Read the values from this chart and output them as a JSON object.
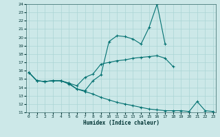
{
  "xlabel": "Humidex (Indice chaleur)",
  "x_values": [
    0,
    1,
    2,
    3,
    4,
    5,
    6,
    7,
    8,
    9,
    10,
    11,
    12,
    13,
    14,
    15,
    16,
    17,
    18,
    19,
    20,
    21,
    22,
    23
  ],
  "line1": [
    15.8,
    14.8,
    14.7,
    14.8,
    14.8,
    14.5,
    13.8,
    13.6,
    14.8,
    15.5,
    19.5,
    20.2,
    20.1,
    19.8,
    19.2,
    21.2,
    24.0,
    19.2,
    null,
    null,
    null,
    null,
    null,
    null
  ],
  "line2": [
    15.8,
    14.8,
    14.7,
    14.8,
    14.8,
    14.5,
    14.2,
    15.2,
    15.6,
    16.8,
    17.0,
    17.2,
    17.3,
    17.5,
    17.6,
    17.7,
    17.8,
    17.5,
    16.5,
    null,
    null,
    null,
    null,
    null
  ],
  "line3": [
    15.8,
    14.8,
    14.7,
    14.8,
    14.8,
    14.4,
    13.8,
    13.5,
    13.2,
    12.8,
    12.5,
    12.2,
    12.0,
    11.8,
    11.6,
    11.4,
    11.3,
    11.2,
    11.2,
    11.2,
    11.1,
    12.3,
    11.2,
    11.1
  ],
  "bg_color": "#cce8e8",
  "grid_color": "#aad4d4",
  "line_color": "#007070",
  "ylim": [
    11,
    24
  ],
  "yticks": [
    11,
    12,
    13,
    14,
    15,
    16,
    17,
    18,
    19,
    20,
    21,
    22,
    23,
    24
  ],
  "xticks": [
    0,
    1,
    2,
    3,
    4,
    5,
    6,
    7,
    8,
    9,
    10,
    11,
    12,
    13,
    14,
    15,
    16,
    17,
    18,
    19,
    20,
    21,
    22,
    23
  ]
}
